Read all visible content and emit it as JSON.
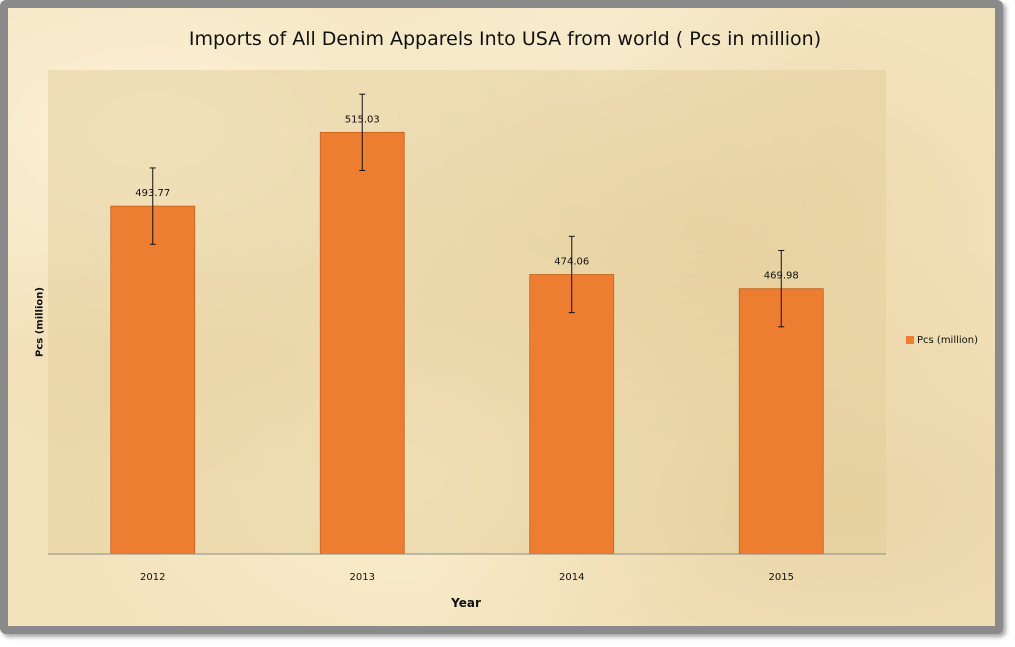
{
  "chart_data": {
    "type": "bar",
    "title": "Imports of All Denim Apparels Into USA from world ( Pcs in million)",
    "xlabel": "Year",
    "ylabel": "Pcs (million)",
    "categories": [
      "2012",
      "2013",
      "2014",
      "2015"
    ],
    "series": [
      {
        "name": "Pcs (million)",
        "values": [
          493.77,
          515.03,
          474.06,
          469.98
        ],
        "labels": [
          "493.77",
          "515.03",
          "474.06",
          "469.98"
        ],
        "error_margin": 11,
        "color": "#ed7d31"
      }
    ],
    "ylim": [
      393.5,
      533
    ],
    "grid": false,
    "legend_position": "right"
  }
}
